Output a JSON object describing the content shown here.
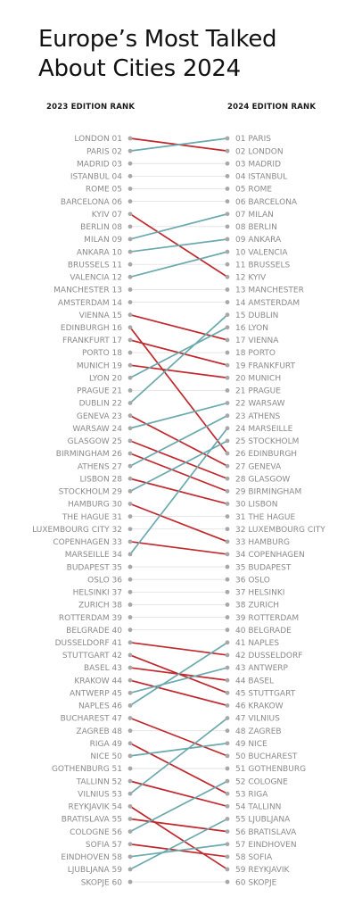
{
  "chart_data": {
    "type": "slope",
    "title_lines": [
      "Europe’s Most Talked",
      "About Cities 2024"
    ],
    "left_header": "2023 EDITION RANK",
    "right_header": "2024 EDITION RANK",
    "ranks": [
      "01",
      "02",
      "03",
      "04",
      "05",
      "06",
      "07",
      "08",
      "09",
      "10",
      "11",
      "12",
      "13",
      "14",
      "15",
      "16",
      "17",
      "18",
      "19",
      "20",
      "21",
      "22",
      "23",
      "24",
      "25",
      "26",
      "27",
      "28",
      "29",
      "30",
      "31",
      "32",
      "33",
      "34",
      "35",
      "36",
      "37",
      "38",
      "39",
      "40",
      "41",
      "42",
      "43",
      "44",
      "45",
      "46",
      "47",
      "48",
      "49",
      "50",
      "51",
      "52",
      "53",
      "54",
      "55",
      "56",
      "57",
      "58",
      "59",
      "60"
    ],
    "ranking_2023": [
      "LONDON",
      "PARIS",
      "MADRID",
      "ISTANBUL",
      "ROME",
      "BARCELONA",
      "KYIV",
      "BERLIN",
      "MILAN",
      "ANKARA",
      "BRUSSELS",
      "VALENCIA",
      "MANCHESTER",
      "AMSTERDAM",
      "VIENNA",
      "EDINBURGH",
      "FRANKFURT",
      "PORTO",
      "MUNICH",
      "LYON",
      "PRAGUE",
      "DUBLIN",
      "GENEVA",
      "WARSAW",
      "GLASGOW",
      "BIRMINGHAM",
      "ATHENS",
      "LISBON",
      "STOCKHOLM",
      "HAMBURG",
      "THE HAGUE",
      "LUXEMBOURG CITY",
      "COPENHAGEN",
      "MARSEILLE",
      "BUDAPEST",
      "OSLO",
      "HELSINKI",
      "ZURICH",
      "ROTTERDAM",
      "BELGRADE",
      "DUSSELDORF",
      "STUTTGART",
      "BASEL",
      "KRAKOW",
      "ANTWERP",
      "NAPLES",
      "BUCHAREST",
      "ZAGREB",
      "RIGA",
      "NICE",
      "GOTHENBURG",
      "TALLINN",
      "VILNIUS",
      "REYKJAVIK",
      "BRATISLAVA",
      "COLOGNE",
      "SOFIA",
      "EINDHOVEN",
      "LJUBLJANA",
      "SKOPJE"
    ],
    "ranking_2024": [
      "PARIS",
      "LONDON",
      "MADRID",
      "ISTANBUL",
      "ROME",
      "BARCELONA",
      "MILAN",
      "BERLIN",
      "ANKARA",
      "VALENCIA",
      "BRUSSELS",
      "KYIV",
      "MANCHESTER",
      "AMSTERDAM",
      "DUBLIN",
      "LYON",
      "VIENNA",
      "PORTO",
      "FRANKFURT",
      "MUNICH",
      "PRAGUE",
      "WARSAW",
      "ATHENS",
      "MARSEILLE",
      "STOCKHOLM",
      "EDINBURGH",
      "GENEVA",
      "GLASGOW",
      "BIRMINGHAM",
      "LISBON",
      "THE HAGUE",
      "LUXEMBOURG CITY",
      "HAMBURG",
      "COPENHAGEN",
      "BUDAPEST",
      "OSLO",
      "HELSINKI",
      "ZURICH",
      "ROTTERDAM",
      "BELGRADE",
      "NAPLES",
      "DUSSELDORF",
      "ANTWERP",
      "BASEL",
      "STUTTGART",
      "KRAKOW",
      "VILNIUS",
      "ZAGREB",
      "NICE",
      "BUCHAREST",
      "GOTHENBURG",
      "COLOGNE",
      "RIGA",
      "TALLINN",
      "LJUBLJANA",
      "BRATISLAVA",
      "EINDHOVEN",
      "SOFIA",
      "REYKJAVIK",
      "SKOPJE"
    ],
    "colors": {
      "rank_down": "#c0282d",
      "rank_up": "#6aa9ae",
      "unchanged_line": "#e2e2e2",
      "dot": "#a8a8a8",
      "label": "#8a8a8a"
    }
  }
}
